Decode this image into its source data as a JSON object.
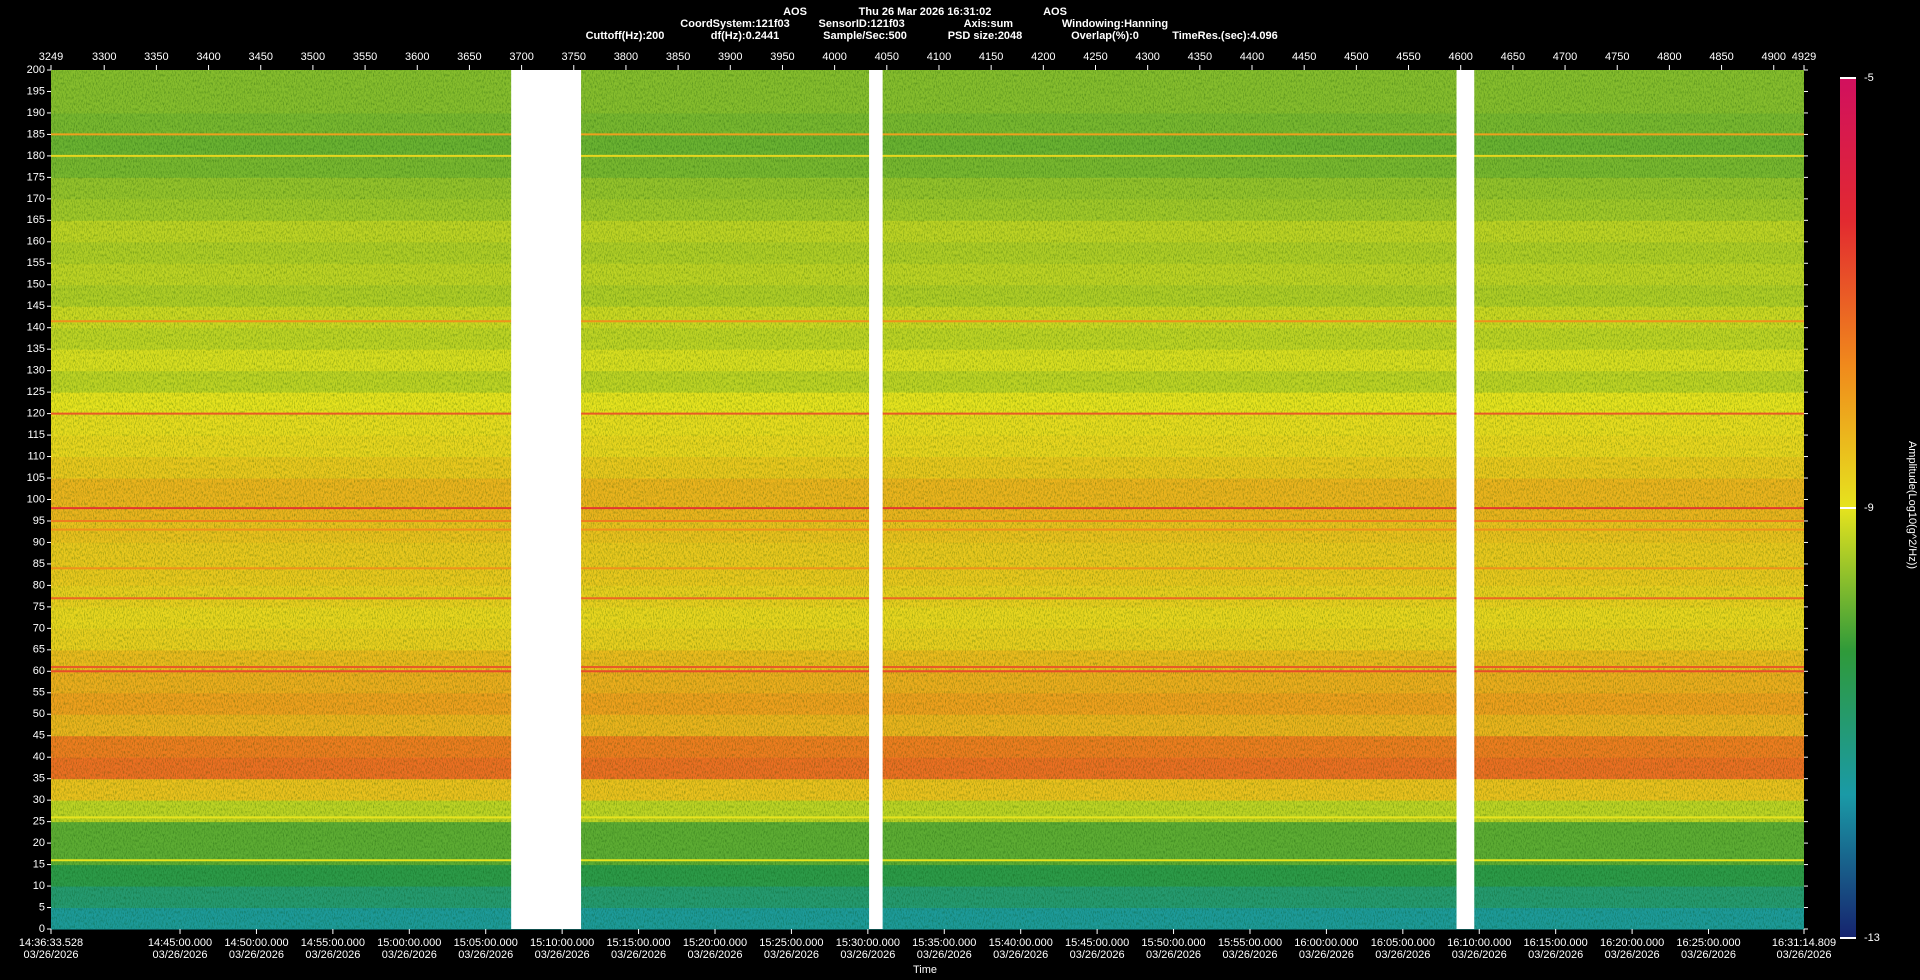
{
  "chart_data": {
    "type": "spectrogram",
    "header": [
      [
        "AOS",
        "Thu 26 Mar 2026 16:31:02",
        "AOS"
      ],
      [
        "CoordSystem:121f03",
        "SensorID:121f03",
        "Axis:sum",
        "Windowing:Hanning"
      ],
      [
        "Cuttoff(Hz):200",
        "df(Hz):0.2441",
        "Sample/Sec:500",
        "PSD size:2048",
        "Overlap(%):0",
        "TimeRes.(sec):4.096"
      ]
    ],
    "xlabel": "Time",
    "colorbar_label": "Amplitude(Log10(g^2/Hz))",
    "xlim": [
      3249,
      4929
    ],
    "xticks": [
      3249,
      3300,
      3350,
      3400,
      3450,
      3500,
      3550,
      3600,
      3650,
      3700,
      3750,
      3800,
      3850,
      3900,
      3950,
      4000,
      4050,
      4100,
      4150,
      4200,
      4250,
      4300,
      4350,
      4400,
      4450,
      4500,
      4550,
      4600,
      4650,
      4700,
      4750,
      4800,
      4850,
      4900,
      4929
    ],
    "time_ticks": [
      {
        "value": 3249,
        "label": "14:36:33.528",
        "date": "03/26/2026"
      },
      {
        "value": 3372.65,
        "label": "14:45:00.000",
        "date": "03/26/2026"
      },
      {
        "value": 3445.89,
        "label": "14:50:00.000",
        "date": "03/26/2026"
      },
      {
        "value": 3519.13,
        "label": "14:55:00.000",
        "date": "03/26/2026"
      },
      {
        "value": 3592.38,
        "label": "15:00:00.000",
        "date": "03/26/2026"
      },
      {
        "value": 3665.62,
        "label": "15:05:00.000",
        "date": "03/26/2026"
      },
      {
        "value": 3738.86,
        "label": "15:10:00.000",
        "date": "03/26/2026"
      },
      {
        "value": 3812.1,
        "label": "15:15:00.000",
        "date": "03/26/2026"
      },
      {
        "value": 3885.35,
        "label": "15:20:00.000",
        "date": "03/26/2026"
      },
      {
        "value": 3958.59,
        "label": "15:25:00.000",
        "date": "03/26/2026"
      },
      {
        "value": 4031.83,
        "label": "15:30:00.000",
        "date": "03/26/2026"
      },
      {
        "value": 4105.08,
        "label": "15:35:00.000",
        "date": "03/26/2026"
      },
      {
        "value": 4178.32,
        "label": "15:40:00.000",
        "date": "03/26/2026"
      },
      {
        "value": 4251.56,
        "label": "15:45:00.000",
        "date": "03/26/2026"
      },
      {
        "value": 4324.8,
        "label": "15:50:00.000",
        "date": "03/26/2026"
      },
      {
        "value": 4398.05,
        "label": "15:55:00.000",
        "date": "03/26/2026"
      },
      {
        "value": 4471.29,
        "label": "16:00:00.000",
        "date": "03/26/2026"
      },
      {
        "value": 4544.53,
        "label": "16:05:00.000",
        "date": "03/26/2026"
      },
      {
        "value": 4617.77,
        "label": "16:10:00.000",
        "date": "03/26/2026"
      },
      {
        "value": 4691.02,
        "label": "16:15:00.000",
        "date": "03/26/2026"
      },
      {
        "value": 4764.26,
        "label": "16:20:00.000",
        "date": "03/26/2026"
      },
      {
        "value": 4837.5,
        "label": "16:25:00.000",
        "date": "03/26/2026"
      },
      {
        "value": 4929,
        "label": "16:31:14.809",
        "date": "03/26/2026"
      }
    ],
    "ylim": [
      0,
      200
    ],
    "yticks": [
      0,
      5,
      10,
      15,
      20,
      25,
      30,
      35,
      40,
      45,
      50,
      55,
      60,
      65,
      70,
      75,
      80,
      85,
      90,
      95,
      100,
      105,
      110,
      115,
      120,
      125,
      130,
      135,
      140,
      145,
      150,
      155,
      160,
      165,
      170,
      175,
      180,
      185,
      190,
      195,
      200
    ],
    "freq_bins": [
      0,
      5,
      10,
      15,
      20,
      25,
      30,
      35,
      40,
      45,
      50,
      55,
      60,
      65,
      70,
      75,
      80,
      85,
      90,
      95,
      100,
      105,
      110,
      115,
      120,
      125,
      130,
      135,
      140,
      145,
      150,
      155,
      160,
      165,
      170,
      175,
      180,
      185,
      190,
      195,
      200
    ],
    "amplitude": [
      -11.5,
      -11,
      -10.5,
      -10,
      -10,
      -9.3,
      -8.5,
      -7.3,
      -7.5,
      -8.3,
      -8,
      -8.2,
      -8.4,
      -8.7,
      -8.8,
      -8.7,
      -8.6,
      -8.6,
      -8.5,
      -8.3,
      -8.3,
      -8.6,
      -8.8,
      -8.9,
      -9,
      -9.3,
      -9.1,
      -9.3,
      -9.2,
      -9.4,
      -9.3,
      -9.4,
      -9.3,
      -9.5,
      -9.6,
      -9.8,
      -9.9,
      -9.8,
      -9.7,
      -9.7
    ],
    "tones": [
      {
        "freq": 185,
        "amp": -8
      },
      {
        "freq": 180,
        "amp": -8.8
      },
      {
        "freq": 141.5,
        "amp": -7.8
      },
      {
        "freq": 120,
        "amp": -7
      },
      {
        "freq": 98,
        "amp": -6.5
      },
      {
        "freq": 95,
        "amp": -7.5
      },
      {
        "freq": 93,
        "amp": -7.8
      },
      {
        "freq": 84,
        "amp": -7.8
      },
      {
        "freq": 77,
        "amp": -7.2
      },
      {
        "freq": 61,
        "amp": -7
      },
      {
        "freq": 60,
        "amp": -6.8
      },
      {
        "freq": 26,
        "amp": -9
      },
      {
        "freq": 16,
        "amp": -9
      }
    ],
    "gaps": [
      [
        3690,
        3757
      ],
      [
        4033,
        4046
      ],
      [
        4596,
        4613
      ]
    ],
    "clim": [
      -13,
      -5
    ],
    "cticks": [
      -5,
      -9,
      -13
    ],
    "colormap": [
      "#16236e",
      "#1a9aa6",
      "#2f9a3a",
      "#e6e31e",
      "#f0891c",
      "#e22a30",
      "#d1105e"
    ]
  }
}
